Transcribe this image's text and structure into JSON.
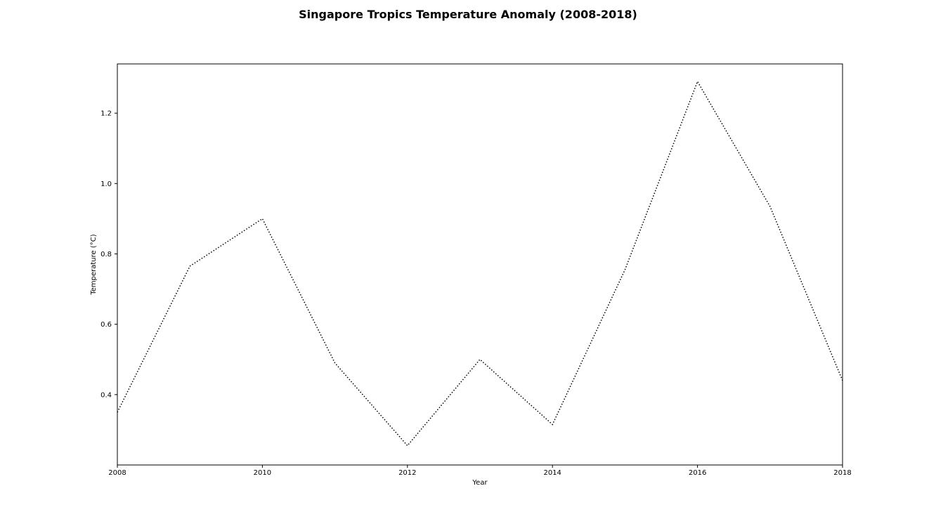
{
  "chart_data": {
    "type": "line",
    "title": "Singapore Tropics Temperature Anomaly (2008-2018)",
    "xlabel": "Year",
    "ylabel": "Temperature (°C)",
    "x": [
      2008,
      2009,
      2010,
      2011,
      2012,
      2013,
      2014,
      2015,
      2016,
      2017,
      2018
    ],
    "series": [
      {
        "values": [
          0.35,
          0.765,
          0.9,
          0.49,
          0.255,
          0.5,
          0.315,
          0.755,
          1.29,
          0.935,
          0.44
        ],
        "color": "#000000",
        "line_style": "dotted"
      }
    ],
    "xlim": [
      2008,
      2018
    ],
    "ylim": [
      0.2,
      1.34
    ],
    "xticks": [
      2008,
      2010,
      2012,
      2014,
      2016,
      2018
    ],
    "yticks": [
      0.4,
      0.6,
      0.8,
      1.0,
      1.2
    ],
    "ytick_labels": [
      "0.4",
      "0.6",
      "0.8",
      "1.0",
      "1.2"
    ],
    "grid": false,
    "legend": false
  }
}
